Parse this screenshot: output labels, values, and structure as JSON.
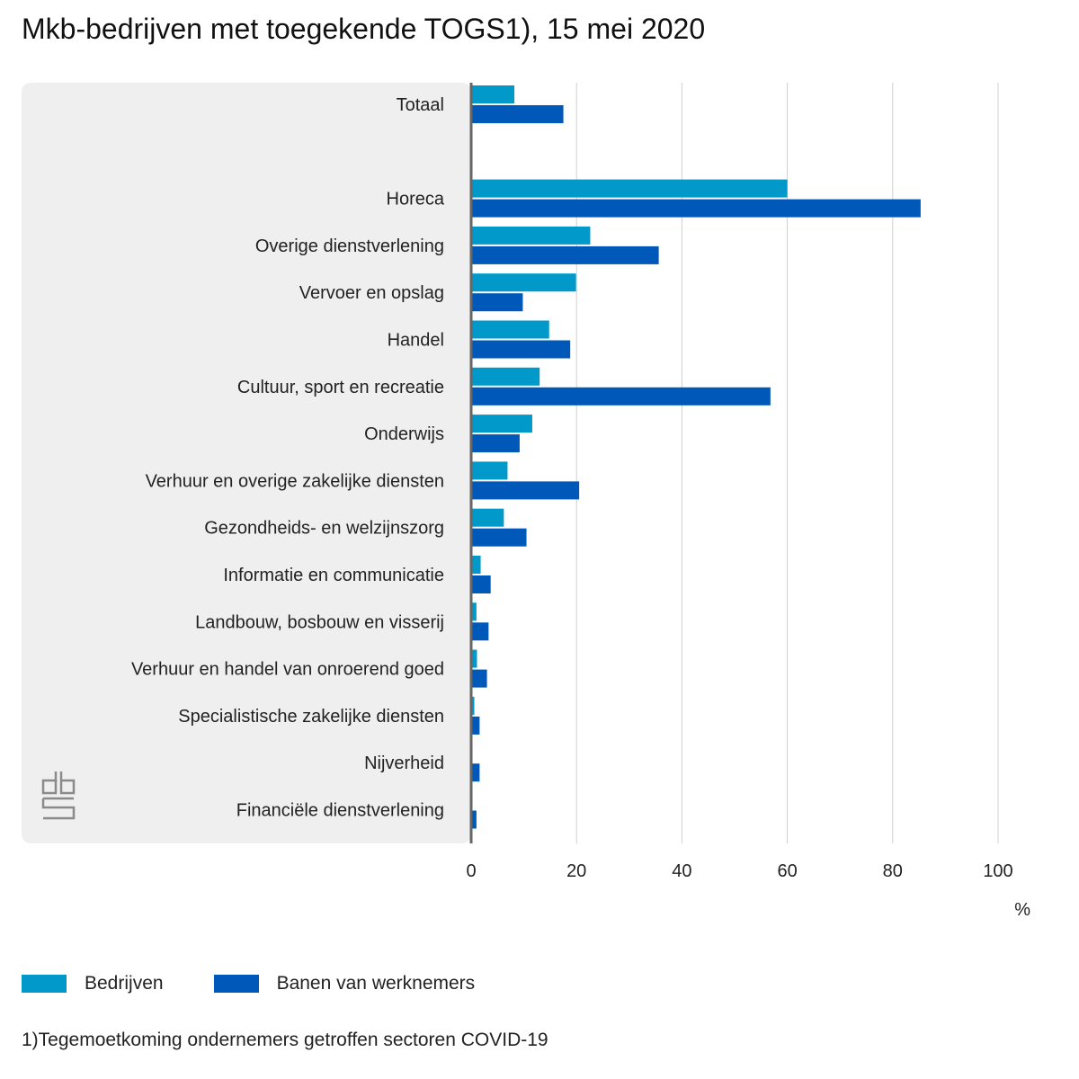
{
  "title": "Mkb-bedrijven met toegekende TOGS1), 15 mei 2020",
  "footnote": "1)Tegemoetkoming ondernemers getroffen sectoren COVID-19",
  "colors": {
    "bedrijven": "#0099C9",
    "banen": "#0058B8",
    "panel": "#EFEFEF",
    "axis": "#666666",
    "grid": "#D0D0D0"
  },
  "chart_data": {
    "type": "bar",
    "orientation": "horizontal",
    "categories": [
      "Totaal",
      "",
      "Horeca",
      "Overige dienstverlening",
      "Vervoer en opslag",
      "Handel",
      "Cultuur, sport en recreatie",
      "Onderwijs",
      "Verhuur en overige zakelijke diensten",
      "Gezondheids- en welzijnszorg",
      "Informatie en communicatie",
      "Landbouw, bosbouw en visserij",
      "Verhuur en handel van onroerend goed",
      "Specialistische zakelijke diensten",
      "Nijverheid",
      "Financiële dienstverlening"
    ],
    "series": [
      {
        "name": "Bedrijven",
        "values": [
          8.2,
          null,
          60,
          22.6,
          19.9,
          14.8,
          13.0,
          11.6,
          6.9,
          6.2,
          1.8,
          1.0,
          1.1,
          0.6,
          0.2,
          0.2
        ]
      },
      {
        "name": "Banen van werknemers",
        "values": [
          17.5,
          null,
          85.3,
          35.6,
          9.8,
          18.8,
          56.8,
          9.2,
          20.5,
          10.5,
          3.7,
          3.3,
          3.0,
          1.6,
          1.6,
          1.0
        ]
      }
    ],
    "xticks": [
      0,
      20,
      40,
      60,
      80,
      100
    ],
    "xlim": [
      0,
      100
    ],
    "xlabel": "%",
    "grid": true,
    "legend": "bottom-left"
  },
  "logo": {
    "name": "cbs-logo-icon",
    "text": "cbs"
  }
}
